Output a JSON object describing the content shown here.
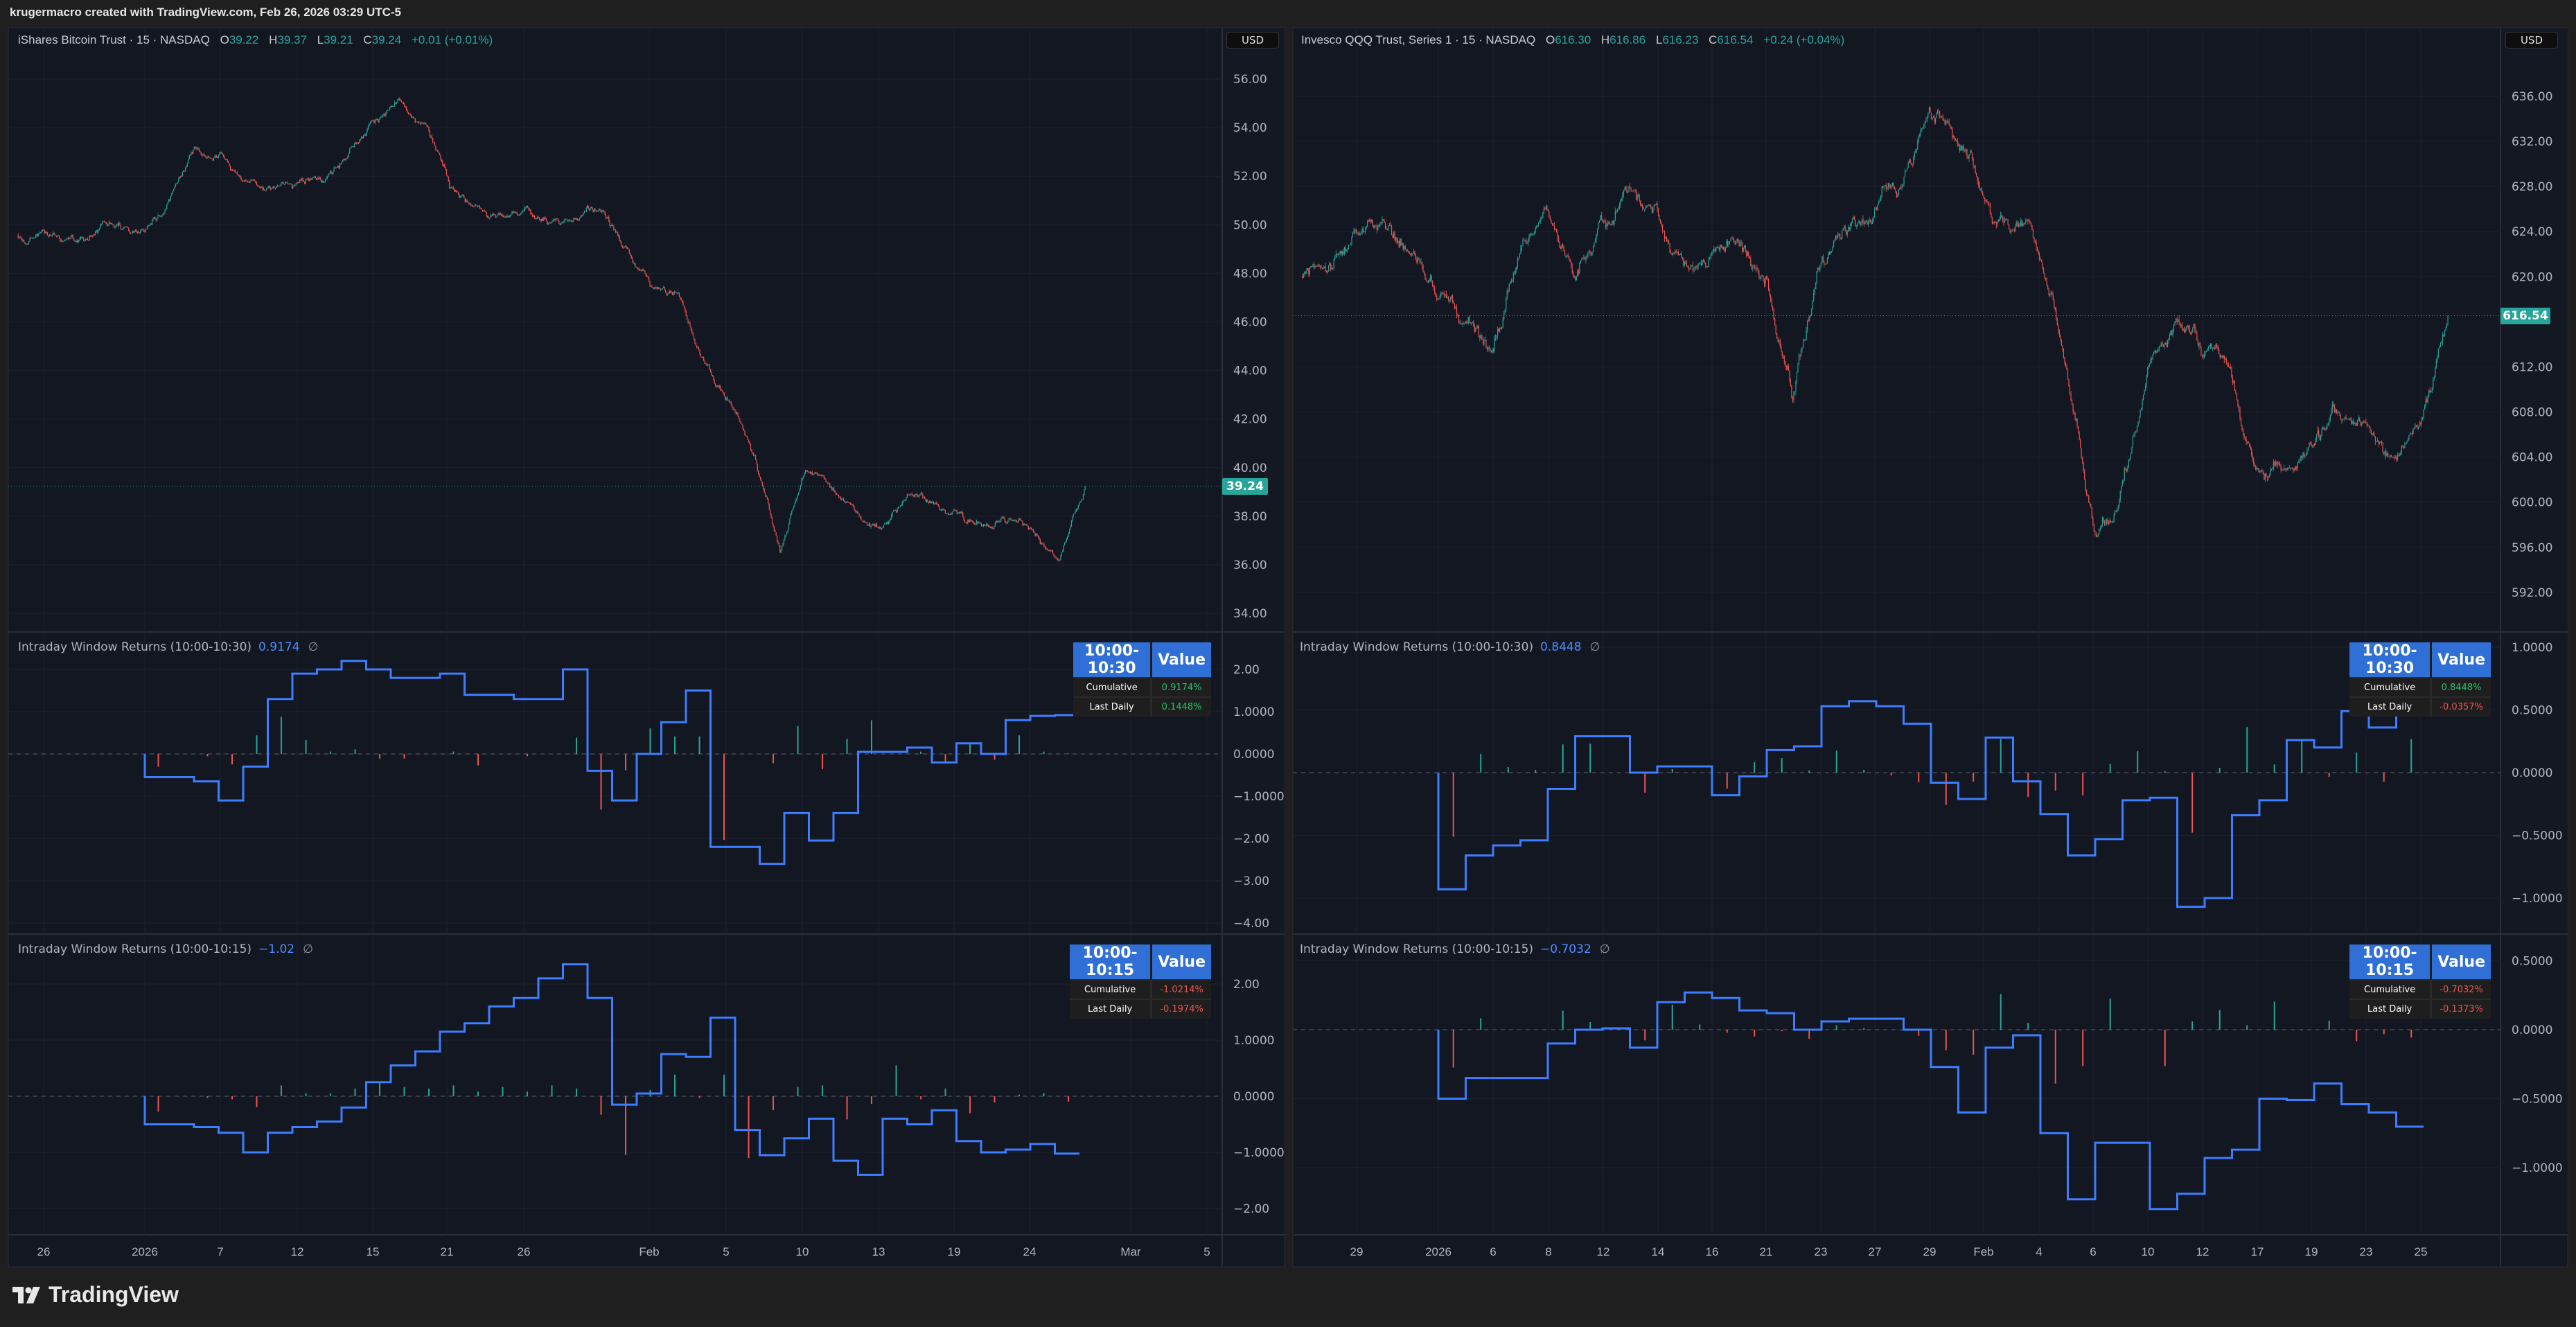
{
  "header": {
    "title": "krugermacro created with TradingView.com, Feb 26, 2026 03:29 UTC-5"
  },
  "footer": {
    "brand": "TradingView",
    "logo_icon": "tradingview-logo-icon"
  },
  "colors": {
    "up": "#26a69a",
    "down": "#ef5350",
    "indicator_line": "#3d7dff",
    "table_header": "#2f6fd6",
    "pane_bg": "#131722",
    "page_bg": "#1f1f1f"
  },
  "trading_days": [
    "2025-12-24",
    "2025-12-26",
    "2025-12-29",
    "2025-12-30",
    "2025-12-31",
    "2026-01-02",
    "2026-01-05",
    "2026-01-06",
    "2026-01-07",
    "2026-01-08",
    "2026-01-09",
    "2026-01-12",
    "2026-01-13",
    "2026-01-14",
    "2026-01-15",
    "2026-01-16",
    "2026-01-20",
    "2026-01-21",
    "2026-01-22",
    "2026-01-23",
    "2026-01-26",
    "2026-01-27",
    "2026-01-28",
    "2026-01-29",
    "2026-01-30",
    "2026-02-02",
    "2026-02-03",
    "2026-02-04",
    "2026-02-05",
    "2026-02-06",
    "2026-02-09",
    "2026-02-10",
    "2026-02-11",
    "2026-02-12",
    "2026-02-13",
    "2026-02-17",
    "2026-02-18",
    "2026-02-19",
    "2026-02-20",
    "2026-02-23",
    "2026-02-24",
    "2026-02-25"
  ],
  "chart_data": [
    {
      "type": "candlestick",
      "legend": {
        "name": "iShares Bitcoin Trust · 15 · NASDAQ",
        "o_label": "O",
        "o": "39.22",
        "h_label": "H",
        "h": "39.37",
        "l_label": "L",
        "l": "39.21",
        "c_label": "C",
        "c": "39.24",
        "change": "+0.01 (+0.01%)"
      },
      "currency": "USD",
      "last_price": "39.24",
      "price_ticks": [
        "56.00",
        "54.00",
        "52.00",
        "50.00",
        "48.00",
        "46.00",
        "44.00",
        "42.00",
        "40.00",
        "38.00",
        "36.00",
        "34.00"
      ],
      "first_open": 49.6,
      "daily_closes": [
        49.8,
        49.4,
        49.6,
        50.1,
        49.7,
        51.0,
        53.2,
        53.0,
        51.8,
        51.5,
        51.7,
        51.8,
        52.8,
        54.3,
        55.2,
        54.2,
        51.5,
        50.8,
        50.4,
        50.7,
        50.1,
        50.2,
        50.6,
        49.0,
        47.4,
        47.2,
        44.4,
        42.7,
        40.5,
        36.5,
        39.9,
        39.2,
        38.2,
        37.5,
        38.9,
        38.6,
        38.1,
        37.6,
        37.9,
        37.3,
        36.2,
        39.24
      ],
      "x_tick_labels": [
        "26",
        "2026",
        "7",
        "12",
        "15",
        "21",
        "26",
        "Feb",
        "5",
        "10",
        "13",
        "19",
        "24",
        "Mar",
        "5"
      ],
      "indicators": [
        {
          "label": "Intraday Window Returns (10:00-10:30)",
          "value": "0.9174",
          "na": "∅",
          "table": {
            "h1": "10:00-10:30",
            "h2": "Value",
            "rows": [
              {
                "k": "Cumulative",
                "v": "0.9174%",
                "sign": "pos"
              },
              {
                "k": "Last Daily",
                "v": "0.1448%",
                "sign": "pos"
              }
            ]
          },
          "ticks": [
            "2.00",
            "1.0000",
            "0.0000",
            "−1.0000",
            "−2.00",
            "−3.00",
            "−4.00"
          ],
          "start_date": "2026-01-02",
          "values": [
            -0.55,
            -0.55,
            -0.65,
            -1.1,
            -0.3,
            1.3,
            1.9,
            2.0,
            2.2,
            2.0,
            1.8,
            1.8,
            1.9,
            1.4,
            1.4,
            1.3,
            1.3,
            2.0,
            -0.4,
            -1.1,
            0.0,
            0.75,
            1.5,
            -2.2,
            -2.2,
            -2.6,
            -1.4,
            -2.05,
            -1.4,
            0.05,
            0.05,
            0.15,
            -0.2,
            0.25,
            0.0,
            0.8,
            0.9,
            0.9174
          ]
        },
        {
          "label": "Intraday Window Returns (10:00-10:15)",
          "value": "−1.02",
          "na": "∅",
          "table": {
            "h1": "10:00-10:15",
            "h2": "Value",
            "rows": [
              {
                "k": "Cumulative",
                "v": "-1.0214%",
                "sign": "neg"
              },
              {
                "k": "Last Daily",
                "v": "-0.1974%",
                "sign": "neg"
              }
            ]
          },
          "ticks": [
            "2.00",
            "1.0000",
            "0.0000",
            "−1.0000",
            "−2.00"
          ],
          "start_date": "2026-01-02",
          "values": [
            -0.5,
            -0.5,
            -0.55,
            -0.65,
            -1.0,
            -0.65,
            -0.55,
            -0.45,
            -0.2,
            0.25,
            0.55,
            0.8,
            1.15,
            1.3,
            1.6,
            1.75,
            2.1,
            2.35,
            1.75,
            -0.15,
            0.05,
            0.75,
            0.7,
            1.4,
            -0.6,
            -1.05,
            -0.75,
            -0.4,
            -1.15,
            -1.4,
            -0.4,
            -0.5,
            -0.25,
            -0.8,
            -1.0,
            -0.95,
            -0.85,
            -1.0214
          ]
        }
      ]
    },
    {
      "type": "candlestick",
      "legend": {
        "name": "Invesco QQQ Trust, Series 1 · 15 · NASDAQ",
        "o_label": "O",
        "o": "616.30",
        "h_label": "H",
        "h": "616.86",
        "l_label": "L",
        "l": "616.23",
        "c_label": "C",
        "c": "616.54",
        "change": "+0.24 (+0.04%)"
      },
      "currency": "USD",
      "last_price": "616.54",
      "price_ticks": [
        "636.00",
        "632.00",
        "628.00",
        "624.00",
        "620.00",
        "612.00",
        "608.00",
        "604.00",
        "600.00",
        "596.00",
        "592.00"
      ],
      "first_open": 620.0,
      "daily_closes": [
        621,
        624,
        625,
        622,
        618,
        616,
        613.5,
        622,
        626,
        620,
        625,
        628,
        626.5,
        621,
        622,
        623,
        620,
        609,
        621,
        624,
        626,
        628,
        635,
        632,
        627,
        624,
        622,
        612,
        598,
        601,
        612,
        616,
        613,
        612,
        603,
        603,
        605,
        608,
        607,
        604,
        607,
        616.54
      ],
      "x_tick_labels": [
        "29",
        "2026",
        "6",
        "8",
        "12",
        "14",
        "16",
        "21",
        "23",
        "27",
        "29",
        "Feb",
        "4",
        "6",
        "10",
        "12",
        "17",
        "19",
        "23",
        "25"
      ],
      "indicators": [
        {
          "label": "Intraday Window Returns (10:00-10:30)",
          "value": "0.8448",
          "na": "∅",
          "table": {
            "h1": "10:00-10:30",
            "h2": "Value",
            "rows": [
              {
                "k": "Cumulative",
                "v": "0.8448%",
                "sign": "pos"
              },
              {
                "k": "Last Daily",
                "v": "-0.0357%",
                "sign": "neg"
              }
            ]
          },
          "ticks": [
            "1.0000",
            "0.5000",
            "0.0000",
            "−0.5000",
            "−1.0000"
          ],
          "start_date": "2026-01-02",
          "values": [
            -0.93,
            -0.66,
            -0.58,
            -0.54,
            -0.13,
            0.29,
            0.29,
            0,
            0.05,
            0.05,
            -0.18,
            -0.03,
            0.18,
            0.21,
            0.53,
            0.57,
            0.53,
            0.39,
            -0.08,
            -0.21,
            0.28,
            -0.07,
            -0.33,
            -0.66,
            -0.53,
            -0.22,
            -0.2,
            -1.07,
            -1.0,
            -0.34,
            -0.22,
            0.26,
            0.2,
            0.49,
            0.36,
            0.8448
          ]
        },
        {
          "label": "Intraday Window Returns (10:00-10:15)",
          "value": "−0.7032",
          "na": "∅",
          "table": {
            "h1": "10:00-10:15",
            "h2": "Value",
            "rows": [
              {
                "k": "Cumulative",
                "v": "-0.7032%",
                "sign": "neg"
              },
              {
                "k": "Last Daily",
                "v": "-0.1373%",
                "sign": "neg"
              }
            ]
          },
          "ticks": [
            "0.5000",
            "0.0000",
            "−0.5000",
            "−1.0000"
          ],
          "start_date": "2026-01-02",
          "values": [
            -0.5,
            -0.35,
            -0.35,
            -0.35,
            -0.1,
            0,
            0.01,
            -0.13,
            0.2,
            0.27,
            0.23,
            0.14,
            0.12,
            0,
            0.06,
            0.08,
            0.08,
            0,
            -0.27,
            -0.6,
            -0.13,
            -0.04,
            -0.75,
            -1.23,
            -0.82,
            -0.82,
            -1.3,
            -1.19,
            -0.93,
            -0.87,
            -0.5,
            -0.51,
            -0.39,
            -0.54,
            -0.6,
            -0.7032
          ]
        }
      ]
    }
  ]
}
